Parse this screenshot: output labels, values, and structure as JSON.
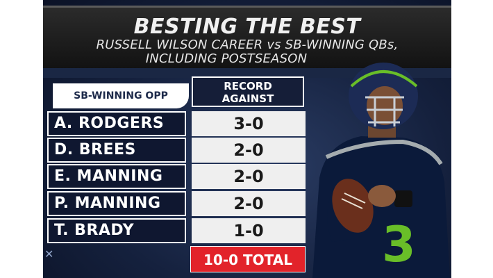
{
  "header": {
    "title": "BESTING THE BEST",
    "subtitle_line1": "RUSSELL WILSON CAREER vs SB-WINNING QBs,",
    "subtitle_line2": "INCLUDING POSTSEASON"
  },
  "table": {
    "col_opponent": "SB-WINNING OPP",
    "col_record": "RECORD AGAINST",
    "rows": [
      {
        "name": "A. RODGERS",
        "record": "3-0"
      },
      {
        "name": "D. BREES",
        "record": "2-0"
      },
      {
        "name": "E. MANNING",
        "record": "2-0"
      },
      {
        "name": "P. MANNING",
        "record": "2-0"
      },
      {
        "name": "T. BRADY",
        "record": "1-0"
      }
    ],
    "total": "10-0 TOTAL"
  },
  "player": {
    "jersey_number": "3",
    "team_colors": {
      "navy": "#0b1a3a",
      "action_green": "#69be28",
      "wolf_grey": "#a5acaf"
    }
  }
}
